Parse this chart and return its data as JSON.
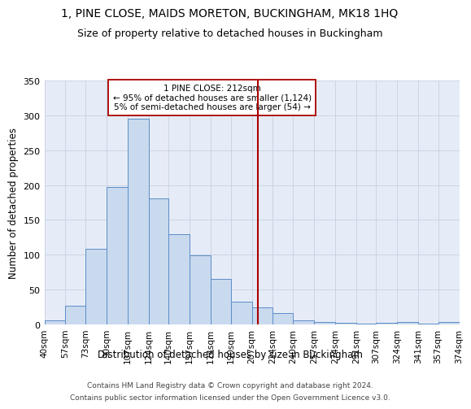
{
  "title1": "1, PINE CLOSE, MAIDS MORETON, BUCKINGHAM, MK18 1HQ",
  "title2": "Size of property relative to detached houses in Buckingham",
  "xlabel": "Distribution of detached houses by size in Buckingham",
  "ylabel": "Number of detached properties",
  "bin_edges": [
    40,
    57,
    73,
    90,
    107,
    124,
    140,
    157,
    174,
    190,
    207,
    224,
    240,
    257,
    274,
    291,
    307,
    324,
    341,
    357,
    374
  ],
  "bar_heights": [
    6,
    27,
    109,
    197,
    295,
    181,
    129,
    99,
    65,
    33,
    25,
    16,
    6,
    3,
    2,
    1,
    2,
    3,
    1,
    3
  ],
  "bar_color": "#c9d9ee",
  "bar_edge_color": "#5b8dc8",
  "vline_x": 212,
  "vline_color": "#aa0000",
  "annotation_text": "1 PINE CLOSE: 212sqm\n← 95% of detached houses are smaller (1,124)\n5% of semi-detached houses are larger (54) →",
  "annotation_box_color": "#ffffff",
  "annotation_box_edge": "#aa0000",
  "ylim": [
    0,
    350
  ],
  "yticks": [
    0,
    50,
    100,
    150,
    200,
    250,
    300,
    350
  ],
  "footer1": "Contains HM Land Registry data © Crown copyright and database right 2024.",
  "footer2": "Contains public sector information licensed under the Open Government Licence v3.0.",
  "bg_color": "#e6ecf7",
  "title1_fontsize": 10,
  "title2_fontsize": 9,
  "grid_color": "#c8d0e0"
}
